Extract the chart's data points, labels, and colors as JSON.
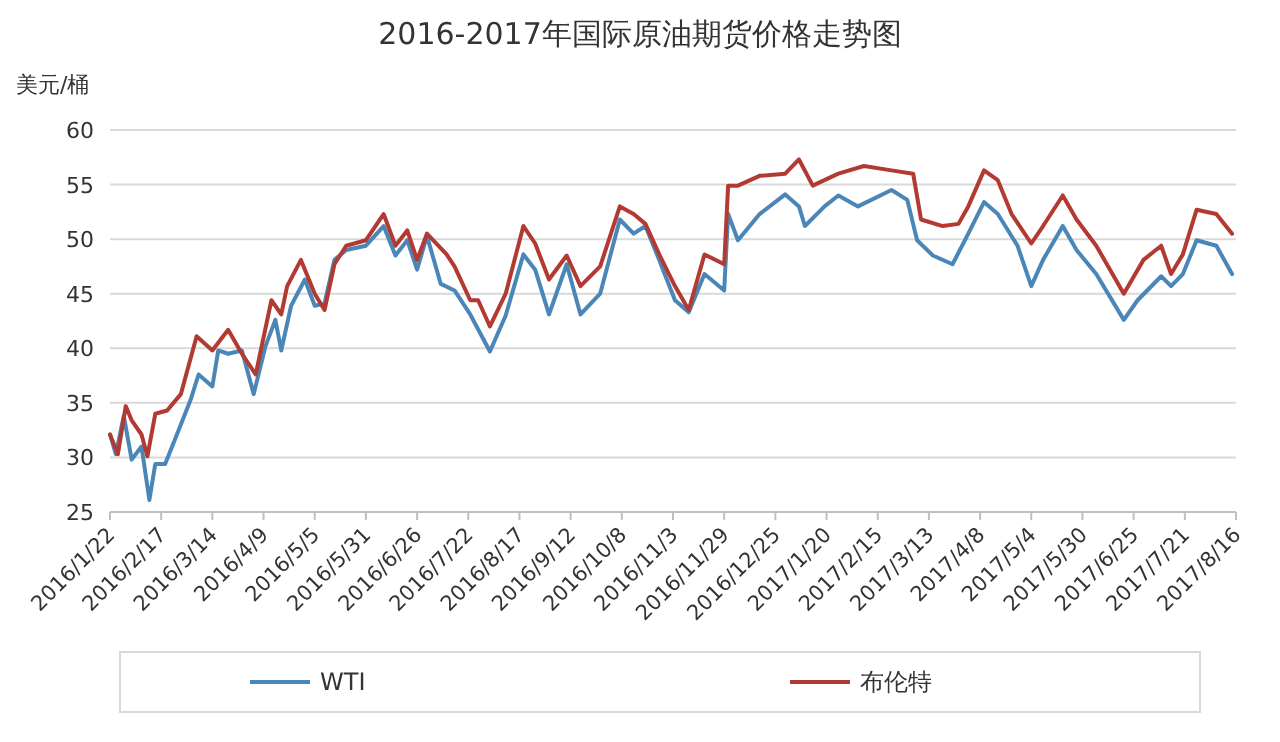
{
  "chart_data": {
    "type": "line",
    "title": "2016-2017年国际原油期货价格走势图",
    "ylabel": "美元/桶",
    "xlim": [
      "2016-01-22",
      "2017-08-16"
    ],
    "xticks": [
      {
        "value": "2016-01-22",
        "label": "2016/1/22"
      },
      {
        "value": "2016-02-17",
        "label": "2016/2/17"
      },
      {
        "value": "2016-03-14",
        "label": "2016/3/14"
      },
      {
        "value": "2016-04-09",
        "label": "2016/4/9"
      },
      {
        "value": "2016-05-05",
        "label": "2016/5/5"
      },
      {
        "value": "2016-05-31",
        "label": "2016/5/31"
      },
      {
        "value": "2016-06-26",
        "label": "2016/6/26"
      },
      {
        "value": "2016-07-22",
        "label": "2016/7/22"
      },
      {
        "value": "2016-08-17",
        "label": "2016/8/17"
      },
      {
        "value": "2016-09-12",
        "label": "2016/9/12"
      },
      {
        "value": "2016-10-08",
        "label": "2016/10/8"
      },
      {
        "value": "2016-11-03",
        "label": "2016/11/3"
      },
      {
        "value": "2016-11-29",
        "label": "2016/11/29"
      },
      {
        "value": "2016-12-25",
        "label": "2016/12/25"
      },
      {
        "value": "2017-01-20",
        "label": "2017/1/20"
      },
      {
        "value": "2017-02-15",
        "label": "2017/2/15"
      },
      {
        "value": "2017-03-13",
        "label": "2017/3/13"
      },
      {
        "value": "2017-04-08",
        "label": "2017/4/8"
      },
      {
        "value": "2017-05-04",
        "label": "2017/5/4"
      },
      {
        "value": "2017-05-30",
        "label": "2017/5/30"
      },
      {
        "value": "2017-06-25",
        "label": "2017/6/25"
      },
      {
        "value": "2017-07-21",
        "label": "2017/7/21"
      },
      {
        "value": "2017-08-16",
        "label": "2017/8/16"
      }
    ],
    "ylim": [
      25,
      60
    ],
    "yticks": [
      25,
      30,
      35,
      40,
      45,
      50,
      55,
      60
    ],
    "grid": "y",
    "legend": "bottom",
    "series": [
      {
        "name": "WTI",
        "color": "#4a86b8",
        "x": [
          "2016-01-22",
          "2016-01-25",
          "2016-01-29",
          "2016-02-02",
          "2016-02-07",
          "2016-02-11",
          "2016-02-14",
          "2016-02-19",
          "2016-02-25",
          "2016-03-03",
          "2016-03-07",
          "2016-03-14",
          "2016-03-17",
          "2016-03-22",
          "2016-03-29",
          "2016-04-04",
          "2016-04-10",
          "2016-04-15",
          "2016-04-18",
          "2016-04-23",
          "2016-04-30",
          "2016-05-05",
          "2016-05-10",
          "2016-05-15",
          "2016-05-21",
          "2016-05-31",
          "2016-06-09",
          "2016-06-15",
          "2016-06-21",
          "2016-06-26",
          "2016-07-01",
          "2016-07-08",
          "2016-07-15",
          "2016-07-23",
          "2016-08-02",
          "2016-08-10",
          "2016-08-19",
          "2016-08-25",
          "2016-09-01",
          "2016-09-10",
          "2016-09-17",
          "2016-09-27",
          "2016-10-07",
          "2016-10-14",
          "2016-10-20",
          "2016-10-27",
          "2016-11-04",
          "2016-11-11",
          "2016-11-19",
          "2016-11-29",
          "2016-12-01",
          "2016-12-06",
          "2016-12-17",
          "2016-12-30",
          "2017-01-06",
          "2017-01-09",
          "2017-01-19",
          "2017-01-26",
          "2017-02-05",
          "2017-02-22",
          "2017-03-02",
          "2017-03-07",
          "2017-03-15",
          "2017-03-25",
          "2017-04-02",
          "2017-04-10",
          "2017-04-17",
          "2017-04-27",
          "2017-05-04",
          "2017-05-10",
          "2017-05-20",
          "2017-05-27",
          "2017-06-06",
          "2017-06-20",
          "2017-06-27",
          "2017-07-09",
          "2017-07-14",
          "2017-07-20",
          "2017-07-27",
          "2017-08-06",
          "2017-08-14"
        ],
        "values": [
          32.1,
          30.3,
          33.8,
          29.8,
          31.0,
          26.1,
          29.4,
          29.4,
          32.1,
          35.3,
          37.6,
          36.5,
          39.8,
          39.5,
          39.8,
          35.8,
          40.2,
          42.6,
          39.8,
          43.9,
          46.3,
          43.9,
          44.1,
          48.1,
          49.0,
          49.4,
          51.2,
          48.5,
          49.9,
          47.2,
          50.3,
          45.9,
          45.3,
          43.1,
          39.7,
          43.0,
          48.6,
          47.2,
          43.1,
          47.7,
          43.1,
          45.0,
          51.8,
          50.5,
          51.2,
          48.1,
          44.4,
          43.3,
          46.8,
          45.3,
          52.3,
          49.9,
          52.3,
          54.1,
          53.0,
          51.2,
          53.0,
          54.0,
          53.0,
          54.5,
          53.6,
          49.9,
          48.5,
          47.7,
          50.5,
          53.4,
          52.3,
          49.4,
          45.7,
          48.1,
          51.2,
          49.0,
          46.8,
          42.6,
          44.4,
          46.6,
          45.7,
          46.8,
          49.9,
          49.4,
          46.8
        ]
      },
      {
        "name": "布伦特",
        "color": "#b23a32",
        "x": [
          "2016-01-22",
          "2016-01-26",
          "2016-01-30",
          "2016-02-02",
          "2016-02-07",
          "2016-02-10",
          "2016-02-14",
          "2016-02-20",
          "2016-02-27",
          "2016-03-06",
          "2016-03-14",
          "2016-03-22",
          "2016-03-29",
          "2016-04-05",
          "2016-04-13",
          "2016-04-18",
          "2016-04-21",
          "2016-04-28",
          "2016-05-05",
          "2016-05-10",
          "2016-05-15",
          "2016-05-21",
          "2016-05-31",
          "2016-06-09",
          "2016-06-15",
          "2016-06-21",
          "2016-06-26",
          "2016-07-01",
          "2016-07-11",
          "2016-07-15",
          "2016-07-23",
          "2016-07-27",
          "2016-08-02",
          "2016-08-10",
          "2016-08-19",
          "2016-08-25",
          "2016-09-01",
          "2016-09-10",
          "2016-09-17",
          "2016-09-27",
          "2016-10-07",
          "2016-10-14",
          "2016-10-20",
          "2016-10-27",
          "2016-11-04",
          "2016-11-11",
          "2016-11-19",
          "2016-11-29",
          "2016-12-01",
          "2016-12-06",
          "2016-12-17",
          "2016-12-30",
          "2017-01-06",
          "2017-01-13",
          "2017-01-26",
          "2017-02-08",
          "2017-02-22",
          "2017-03-05",
          "2017-03-09",
          "2017-03-20",
          "2017-03-28",
          "2017-04-02",
          "2017-04-10",
          "2017-04-17",
          "2017-04-24",
          "2017-05-04",
          "2017-05-10",
          "2017-05-20",
          "2017-05-27",
          "2017-06-06",
          "2017-06-20",
          "2017-06-30",
          "2017-07-09",
          "2017-07-14",
          "2017-07-20",
          "2017-07-27",
          "2017-08-06",
          "2017-08-14"
        ],
        "values": [
          32.1,
          30.3,
          34.7,
          33.4,
          32.1,
          30.1,
          34.0,
          34.3,
          35.8,
          41.1,
          39.8,
          41.7,
          39.5,
          37.6,
          44.4,
          43.1,
          45.7,
          48.1,
          45.0,
          43.5,
          47.7,
          49.4,
          49.9,
          52.3,
          49.4,
          50.8,
          48.1,
          50.5,
          48.6,
          47.5,
          44.4,
          44.4,
          42.0,
          45.0,
          51.2,
          49.6,
          46.3,
          48.5,
          45.7,
          47.5,
          53.0,
          52.3,
          51.4,
          48.6,
          45.7,
          43.5,
          48.6,
          47.7,
          54.9,
          54.9,
          55.8,
          56.0,
          57.3,
          54.9,
          56.0,
          56.7,
          56.3,
          56.0,
          51.8,
          51.2,
          51.4,
          53.0,
          56.3,
          55.4,
          52.3,
          49.6,
          51.2,
          54.0,
          51.8,
          49.4,
          45.0,
          48.1,
          49.4,
          46.8,
          48.6,
          52.7,
          52.3,
          50.5
        ]
      }
    ]
  }
}
